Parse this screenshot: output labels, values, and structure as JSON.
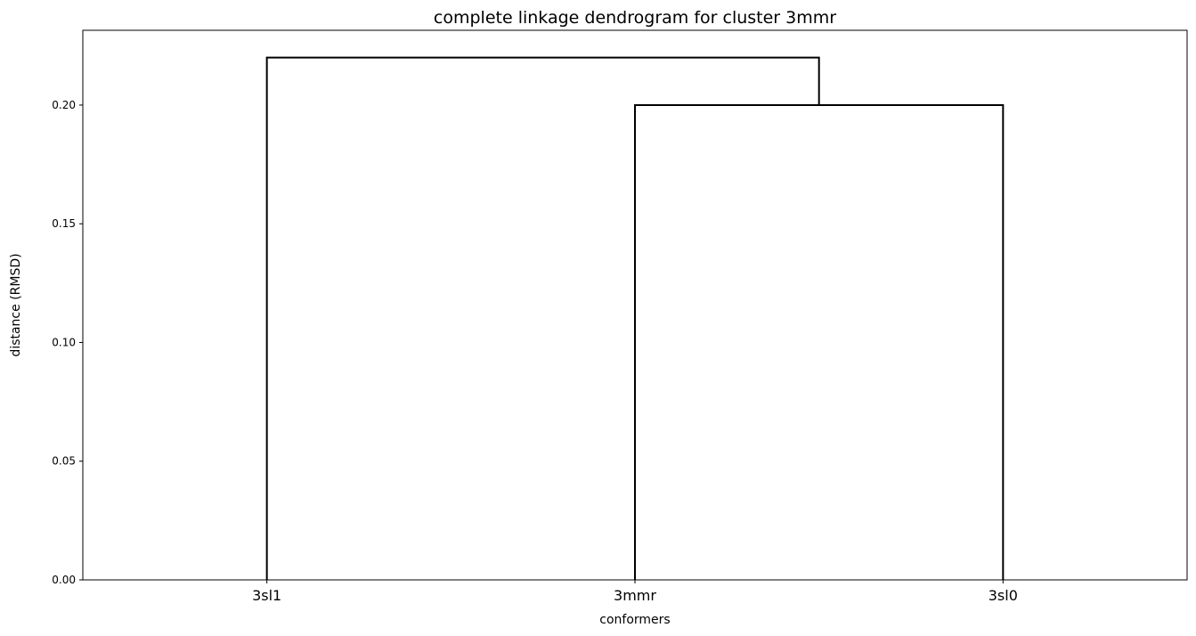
{
  "chart_data": {
    "type": "dendrogram",
    "title": "complete linkage dendrogram for cluster 3mmr",
    "xlabel": "conformers",
    "ylabel": "distance (RMSD)",
    "leaves": [
      "3sl1",
      "3mmr",
      "3sl0"
    ],
    "yticks": [
      "0.00",
      "0.05",
      "0.10",
      "0.15",
      "0.20"
    ],
    "ylim": [
      0,
      0.2315
    ],
    "grid": false,
    "line_color": "#000000",
    "links": [
      {
        "left": "3mmr",
        "right": "3sl0",
        "height": 0.2
      },
      {
        "left": "3sl1",
        "right": "cluster(3mmr,3sl0)",
        "height": 0.22
      }
    ]
  }
}
